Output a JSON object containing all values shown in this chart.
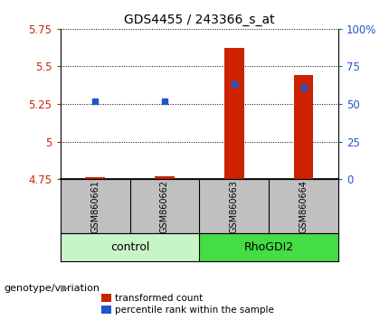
{
  "title": "GDS4455 / 243366_s_at",
  "samples": [
    "GSM860661",
    "GSM860662",
    "GSM860663",
    "GSM860664"
  ],
  "group_names": [
    "control",
    "RhoGDI2"
  ],
  "red_values": [
    4.762,
    4.772,
    5.62,
    5.44
  ],
  "blue_values": [
    5.27,
    5.27,
    5.38,
    5.36
  ],
  "ylim_left": [
    4.75,
    5.75
  ],
  "ylim_right": [
    0,
    100
  ],
  "yticks_left": [
    4.75,
    5.0,
    5.25,
    5.5,
    5.75
  ],
  "ytick_labels_left": [
    "4.75",
    "5",
    "5.25",
    "5.5",
    "5.75"
  ],
  "yticks_right": [
    0,
    25,
    50,
    75,
    100
  ],
  "ytick_labels_right": [
    "0",
    "25",
    "50",
    "75",
    "100%"
  ],
  "red_color": "#cc2200",
  "blue_color": "#2255cc",
  "bar_bottom": 4.75,
  "bar_width": 0.28,
  "legend_labels": [
    "transformed count",
    "percentile rank within the sample"
  ],
  "group_label": "genotype/variation",
  "label_box_color": "#c0c0c0",
  "group_colors": [
    "#c8f5c8",
    "#44dd44"
  ],
  "x_positions": [
    1,
    2,
    3,
    4
  ]
}
